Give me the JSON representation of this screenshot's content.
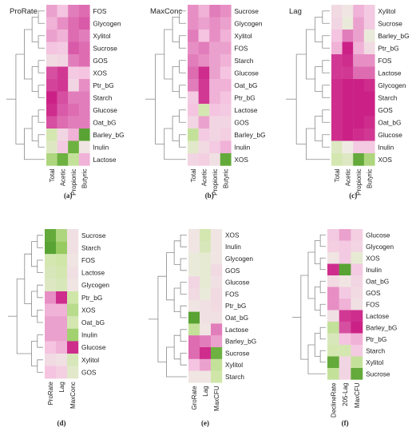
{
  "colors": {
    "strong_magenta": "#c8167f",
    "mid_magenta": "#d95aa8",
    "light_pink": "#f4c4e0",
    "pale": "#efebe4",
    "light_green": "#cfe6a8",
    "mid_green": "#8cc653",
    "dark_green": "#4e9c2d"
  },
  "chart_data": [
    {
      "type": "heatmap",
      "panel_label": "(a)",
      "title": "ProRate",
      "columns": [
        "Total",
        "Acetic",
        "Propionic",
        "Butyric"
      ],
      "rows": [
        "FOS",
        "Glycogen",
        "Xylitol",
        "Sucrose",
        "GOS",
        "XOS",
        "Ptr_bG",
        "Starch",
        "Glucose",
        "Oat_bG",
        "Barley_bG",
        "Inulin",
        "Lactose"
      ],
      "values": [
        [
          0.45,
          0.35,
          0.55,
          0.6
        ],
        [
          0.4,
          0.5,
          0.6,
          0.65
        ],
        [
          0.45,
          0.4,
          0.6,
          0.55
        ],
        [
          0.35,
          0.3,
          0.65,
          0.6
        ],
        [
          0.15,
          0.2,
          0.55,
          0.6
        ],
        [
          0.7,
          0.8,
          0.3,
          0.35
        ],
        [
          0.75,
          0.8,
          0.2,
          0.5
        ],
        [
          0.9,
          0.7,
          0.55,
          0.55
        ],
        [
          0.85,
          0.65,
          0.6,
          0.55
        ],
        [
          0.7,
          0.6,
          0.55,
          0.55
        ],
        [
          -0.3,
          0.2,
          0.4,
          -0.9
        ],
        [
          -0.2,
          0.3,
          -0.8,
          0.05
        ],
        [
          -0.5,
          -0.8,
          -0.4,
          0.4
        ]
      ]
    },
    {
      "type": "heatmap",
      "panel_label": "(b)",
      "title": "MaxConc",
      "columns": [
        "Total",
        "Acetic",
        "Propionic",
        "Butyric"
      ],
      "rows": [
        "Sucrose",
        "Glycogen",
        "Xylitol",
        "FOS",
        "Starch",
        "Glucose",
        "Oat_bG",
        "Ptr_bG",
        "Lactose",
        "GOS",
        "Barley_bG",
        "Inulin",
        "XOS"
      ],
      "values": [
        [
          0.5,
          0.4,
          0.55,
          0.5
        ],
        [
          0.5,
          0.45,
          0.5,
          0.45
        ],
        [
          0.55,
          0.35,
          0.5,
          0.4
        ],
        [
          0.5,
          0.55,
          0.45,
          0.45
        ],
        [
          0.55,
          0.5,
          0.45,
          0.4
        ],
        [
          0.6,
          0.85,
          0.45,
          0.35
        ],
        [
          0.55,
          0.8,
          0.4,
          0.4
        ],
        [
          0.3,
          0.8,
          0.4,
          0.35
        ],
        [
          0.35,
          -0.3,
          0.35,
          0.3
        ],
        [
          0.2,
          0.45,
          0.2,
          0.2
        ],
        [
          -0.4,
          0.3,
          0.2,
          0.25
        ],
        [
          -0.15,
          0.15,
          0.3,
          0.4
        ],
        [
          0.2,
          0.25,
          0.1,
          -0.85
        ]
      ]
    },
    {
      "type": "heatmap",
      "panel_label": "(c)",
      "title": "Lag",
      "columns": [
        "Total",
        "Acetic",
        "Propionic",
        "Butyric"
      ],
      "rows": [
        "Xylitol",
        "Sucrose",
        "Barley_bG",
        "Ptr_bG",
        "FOS",
        "Lactose",
        "Glycogen",
        "Starch",
        "GOS",
        "Oat_bG",
        "Glucose",
        "Inulin",
        "XOS"
      ],
      "values": [
        [
          0.15,
          0.05,
          0.4,
          0.3
        ],
        [
          0.2,
          -0.05,
          0.45,
          0.3
        ],
        [
          0.35,
          0.55,
          0.45,
          -0.05
        ],
        [
          0.4,
          0.9,
          0.4,
          0.15
        ],
        [
          0.8,
          0.85,
          0.5,
          0.5
        ],
        [
          0.8,
          0.8,
          0.6,
          0.6
        ],
        [
          0.85,
          0.9,
          0.9,
          0.85
        ],
        [
          0.85,
          0.9,
          0.9,
          0.9
        ],
        [
          0.85,
          0.9,
          0.9,
          0.9
        ],
        [
          0.85,
          0.9,
          0.9,
          0.85
        ],
        [
          0.85,
          0.9,
          0.85,
          0.8
        ],
        [
          -0.2,
          0.0,
          0.3,
          0.3
        ],
        [
          -0.3,
          -0.2,
          -0.85,
          -0.5
        ]
      ]
    },
    {
      "type": "heatmap",
      "panel_label": "(d)",
      "title": "",
      "columns": [
        "ProRate",
        "Lag",
        "MaxConc"
      ],
      "rows": [
        "Sucrose",
        "Starch",
        "FOS",
        "Lactose",
        "Glycogen",
        "Ptr_bG",
        "XOS",
        "Oat_bG",
        "Inulin",
        "Glucose",
        "Xylitol",
        "GOS"
      ],
      "values": [
        [
          -0.85,
          -0.5,
          0.1
        ],
        [
          -0.9,
          -0.6,
          0.1
        ],
        [
          -0.3,
          -0.35,
          0.05
        ],
        [
          -0.25,
          -0.3,
          0.1
        ],
        [
          -0.2,
          -0.25,
          0.05
        ],
        [
          0.5,
          0.85,
          -0.35
        ],
        [
          0.4,
          0.4,
          -0.45
        ],
        [
          0.45,
          0.45,
          -0.3
        ],
        [
          0.45,
          0.45,
          -0.55
        ],
        [
          0.35,
          0.4,
          0.85
        ],
        [
          0.15,
          0.1,
          -0.25
        ],
        [
          0.35,
          0.25,
          -0.15
        ]
      ]
    },
    {
      "type": "heatmap",
      "panel_label": "(e)",
      "title": "",
      "columns": [
        "GroRate",
        "Lag",
        "MaxCFU"
      ],
      "rows": [
        "XOS",
        "Inulin",
        "Glycogen",
        "GOS",
        "Glucose",
        "FOS",
        "Ptr_bG",
        "Oat_bG",
        "Lactose",
        "Barley_bG",
        "Sucrose",
        "Xylitol",
        "Starch"
      ],
      "values": [
        [
          0.05,
          -0.3,
          0.05
        ],
        [
          0.05,
          -0.25,
          0.05
        ],
        [
          -0.05,
          -0.1,
          0.05
        ],
        [
          -0.05,
          -0.1,
          0.15
        ],
        [
          0.2,
          -0.1,
          0.1
        ],
        [
          0.15,
          -0.05,
          0.15
        ],
        [
          0.05,
          0.1,
          0.15
        ],
        [
          -0.9,
          0.1,
          0.1
        ],
        [
          -0.4,
          0.05,
          0.55
        ],
        [
          0.6,
          0.55,
          0.45
        ],
        [
          0.6,
          0.85,
          -0.8
        ],
        [
          0.35,
          0.45,
          -0.4
        ],
        [
          0.05,
          0.05,
          -0.35
        ]
      ]
    },
    {
      "type": "heatmap",
      "panel_label": "(f)",
      "title": "",
      "columns": [
        "DeclineRate",
        "205-Lag",
        "MaxCFU"
      ],
      "rows": [
        "Glucose",
        "Glycogen",
        "XOS",
        "Inulin",
        "Oat_bG",
        "GOS",
        "FOS",
        "Lactose",
        "Barley_bG",
        "Ptr_bG",
        "Starch",
        "Xylitol",
        "Sucrose"
      ],
      "values": [
        [
          0.3,
          0.45,
          0.25
        ],
        [
          0.25,
          0.3,
          0.2
        ],
        [
          0.05,
          0.3,
          -0.1
        ],
        [
          0.85,
          -0.9,
          0.3
        ],
        [
          0.15,
          0.05,
          0.2
        ],
        [
          0.5,
          0.3,
          0.15
        ],
        [
          0.5,
          0.4,
          0.1
        ],
        [
          0.1,
          0.8,
          0.85
        ],
        [
          -0.4,
          0.7,
          0.9
        ],
        [
          -0.25,
          0.35,
          0.4
        ],
        [
          -0.3,
          -0.3,
          0.3
        ],
        [
          -0.85,
          0.2,
          -0.4
        ],
        [
          -0.4,
          0.2,
          -0.85
        ]
      ]
    }
  ]
}
